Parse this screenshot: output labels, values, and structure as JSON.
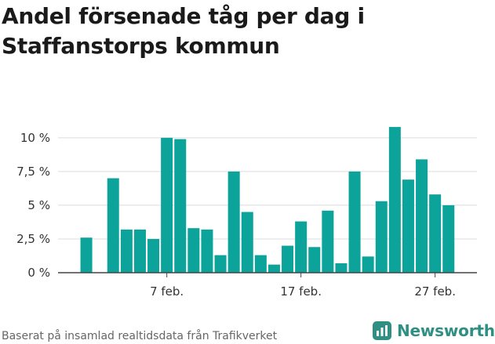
{
  "title": "Andel försenade tåg per dag i Staffanstorps kommun",
  "source": "Baserat på insamlad realtidsdata från Trafikverket",
  "brand": {
    "name": "Newsworthy",
    "icon": "newsworthy-logo-icon"
  },
  "colors": {
    "bar": "#0ba39a",
    "grid": "#dcdcdc",
    "axis": "#444444",
    "brand": "#2f8f83"
  },
  "chart_data": {
    "type": "bar",
    "title": "Andel försenade tåg per dag i Staffanstorps kommun",
    "xlabel": "",
    "ylabel": "",
    "categories": [
      "1 feb.",
      "2 feb.",
      "3 feb.",
      "4 feb.",
      "5 feb.",
      "6 feb.",
      "7 feb.",
      "8 feb.",
      "9 feb.",
      "10 feb.",
      "11 feb.",
      "12 feb.",
      "13 feb.",
      "14 feb.",
      "15 feb.",
      "16 feb.",
      "17 feb.",
      "18 feb.",
      "19 feb.",
      "20 feb.",
      "21 feb.",
      "22 feb.",
      "23 feb.",
      "24 feb.",
      "25 feb.",
      "26 feb.",
      "27 feb.",
      "28 feb."
    ],
    "values": [
      2.6,
      null,
      7.0,
      3.2,
      3.2,
      2.5,
      10.0,
      9.9,
      3.3,
      3.2,
      1.3,
      7.5,
      4.5,
      1.3,
      0.6,
      2.0,
      3.8,
      1.9,
      4.6,
      0.7,
      7.5,
      1.2,
      5.3,
      10.8,
      6.9,
      8.4,
      5.8,
      5.0
    ],
    "ylim": [
      0,
      11.5
    ],
    "yticks": [
      {
        "value": 0,
        "label": "0 %"
      },
      {
        "value": 2.5,
        "label": "2,5 %"
      },
      {
        "value": 5,
        "label": "5 %"
      },
      {
        "value": 7.5,
        "label": "7,5 %"
      },
      {
        "value": 10,
        "label": "10 %"
      }
    ],
    "xticks": [
      {
        "category": "7 feb.",
        "label": "7 feb."
      },
      {
        "category": "17 feb.",
        "label": "17 feb."
      },
      {
        "category": "27 feb.",
        "label": "27 feb."
      }
    ],
    "grid": true,
    "legend": "none"
  }
}
